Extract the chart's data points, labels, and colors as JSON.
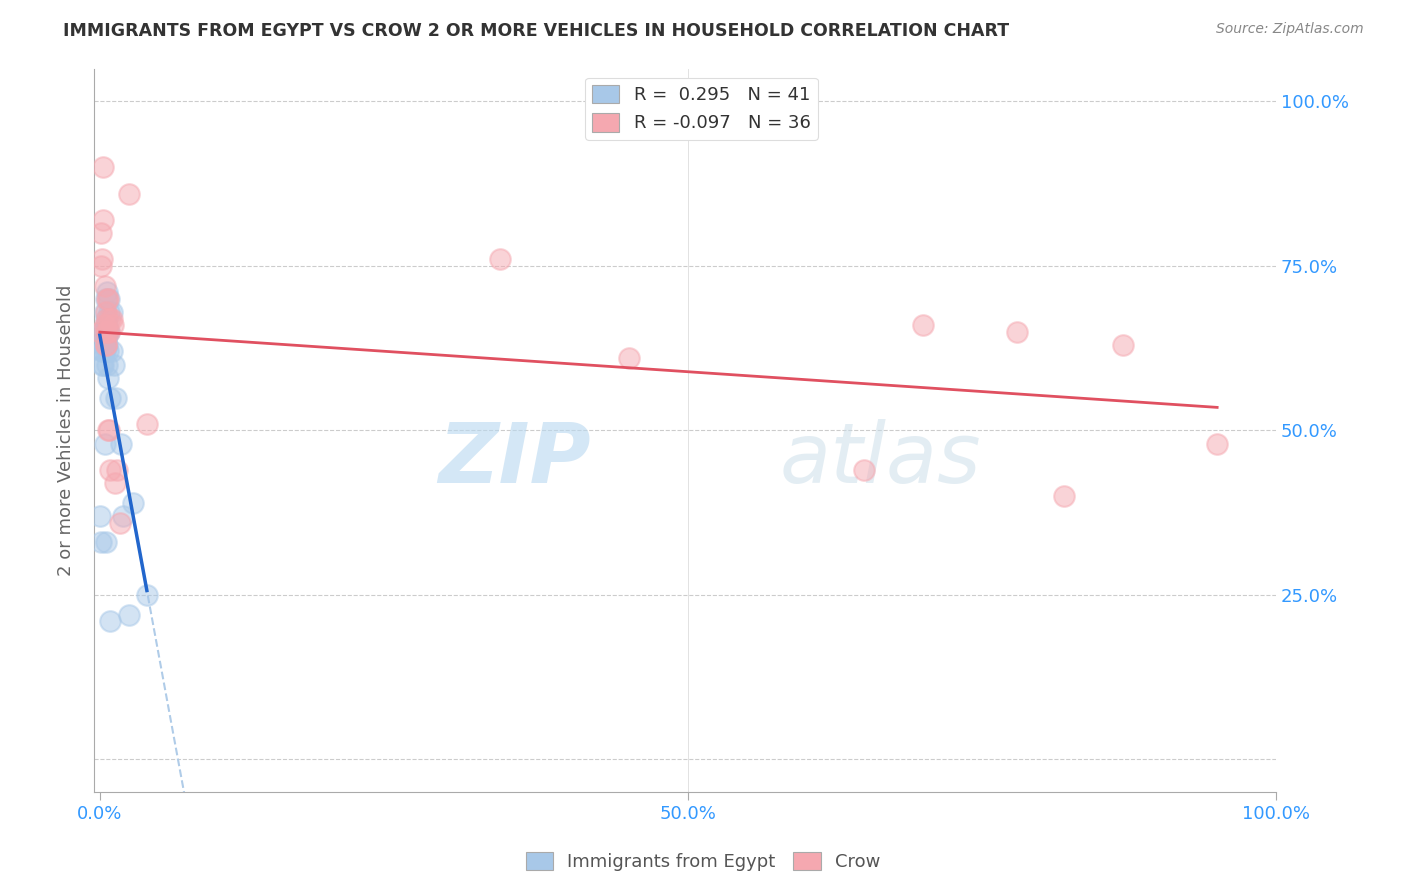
{
  "title": "IMMIGRANTS FROM EGYPT VS CROW 2 OR MORE VEHICLES IN HOUSEHOLD CORRELATION CHART",
  "source": "Source: ZipAtlas.com",
  "ylabel": "2 or more Vehicles in Household",
  "legend1_text": "R =  0.295   N = 41",
  "legend2_text": "R = -0.097   N = 36",
  "watermark_zip": "ZIP",
  "watermark_atlas": "atlas",
  "blue_color": "#a8c8e8",
  "pink_color": "#f5a8b0",
  "blue_line_color": "#2266cc",
  "pink_line_color": "#e05060",
  "dash_line_color": "#b0cce8",
  "egypt_x": [
    0.0,
    0.001,
    0.002,
    0.002,
    0.003,
    0.003,
    0.003,
    0.004,
    0.004,
    0.004,
    0.004,
    0.005,
    0.005,
    0.005,
    0.005,
    0.005,
    0.006,
    0.006,
    0.006,
    0.006,
    0.006,
    0.007,
    0.007,
    0.007,
    0.008,
    0.008,
    0.008,
    0.009,
    0.01,
    0.01,
    0.012,
    0.014,
    0.018,
    0.02,
    0.025,
    0.028,
    0.04,
    0.002,
    0.004,
    0.005,
    0.009
  ],
  "egypt_y": [
    0.37,
    0.33,
    0.62,
    0.65,
    0.62,
    0.6,
    0.63,
    0.62,
    0.64,
    0.65,
    0.68,
    0.66,
    0.64,
    0.7,
    0.67,
    0.64,
    0.71,
    0.63,
    0.6,
    0.65,
    0.66,
    0.62,
    0.58,
    0.65,
    0.65,
    0.68,
    0.7,
    0.55,
    0.68,
    0.62,
    0.6,
    0.55,
    0.48,
    0.37,
    0.22,
    0.39,
    0.25,
    0.6,
    0.48,
    0.33,
    0.21
  ],
  "crow_x": [
    0.0,
    0.001,
    0.001,
    0.002,
    0.003,
    0.003,
    0.004,
    0.004,
    0.005,
    0.005,
    0.005,
    0.005,
    0.006,
    0.006,
    0.006,
    0.007,
    0.007,
    0.008,
    0.008,
    0.009,
    0.009,
    0.01,
    0.011,
    0.013,
    0.015,
    0.017,
    0.025,
    0.04,
    0.34,
    0.45,
    0.65,
    0.7,
    0.78,
    0.82,
    0.87,
    0.95
  ],
  "crow_y": [
    0.65,
    0.8,
    0.75,
    0.76,
    0.9,
    0.82,
    0.72,
    0.66,
    0.65,
    0.68,
    0.63,
    0.63,
    0.7,
    0.65,
    0.67,
    0.5,
    0.7,
    0.65,
    0.5,
    0.44,
    0.67,
    0.67,
    0.66,
    0.42,
    0.44,
    0.36,
    0.86,
    0.51,
    0.76,
    0.61,
    0.44,
    0.66,
    0.65,
    0.4,
    0.63,
    0.48
  ],
  "xlim": [
    -0.005,
    1.0
  ],
  "ylim": [
    -0.05,
    1.05
  ],
  "ytick_vals": [
    0.0,
    0.25,
    0.5,
    0.75,
    1.0
  ],
  "ytick_labels": [
    "",
    "25.0%",
    "50.0%",
    "75.0%",
    "100.0%"
  ],
  "xtick_vals": [
    0.0,
    0.5,
    1.0
  ],
  "xtick_labels": [
    "0.0%",
    "50.0%",
    "100.0%"
  ]
}
